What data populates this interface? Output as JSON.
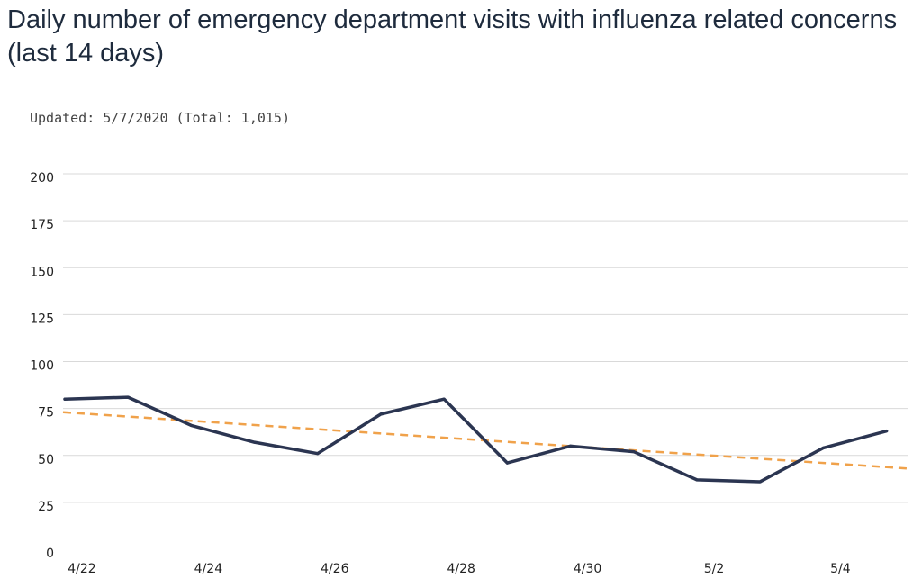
{
  "title": "Daily number of emergency department visits with influenza related concerns (last 14 days)",
  "subtitle": "Updated: 5/7/2020 (Total: 1,015)",
  "colors": {
    "line": "#2b3551",
    "trend": "#f0a24b",
    "grid": "#d9d9d9"
  },
  "chart_data": {
    "type": "line",
    "x": [
      "4/22",
      "4/23",
      "4/24",
      "4/25",
      "4/26",
      "4/27",
      "4/28",
      "4/29",
      "4/30",
      "5/1",
      "5/2",
      "5/3",
      "5/4",
      "5/5"
    ],
    "x_tick_labels": [
      "4/22",
      "4/24",
      "4/26",
      "4/28",
      "4/30",
      "5/2",
      "5/4"
    ],
    "series": [
      {
        "values": [
          80,
          81,
          66,
          57,
          51,
          72,
          80,
          46,
          55,
          52,
          37,
          36,
          54,
          63
        ]
      }
    ],
    "trendline": {
      "start": 73,
      "end": 43,
      "style": "dashed"
    },
    "ylim": [
      0,
      200
    ],
    "yticks": [
      0,
      25,
      50,
      75,
      100,
      125,
      150,
      175,
      200
    ],
    "grid": true,
    "legend": "none"
  }
}
